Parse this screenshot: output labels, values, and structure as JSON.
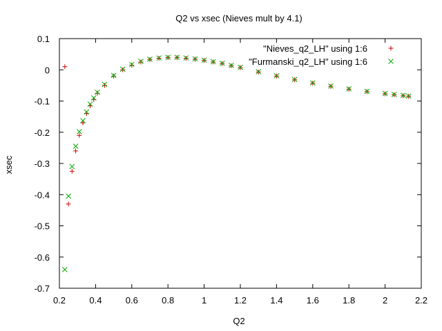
{
  "chart_data": {
    "type": "scatter",
    "title": "Q2 vs xsec (Nieves mult by 4.1)",
    "xlabel": "Q2",
    "ylabel": "xsec",
    "xlim": [
      0.2,
      2.2
    ],
    "ylim": [
      -0.7,
      0.1
    ],
    "x_ticks": [
      0.2,
      0.4,
      0.6,
      0.8,
      1.0,
      1.2,
      1.4,
      1.6,
      1.8,
      2.0,
      2.2
    ],
    "x_tick_labels": [
      "0.2",
      "0.4",
      "0.6",
      "0.8",
      "1",
      "1.2",
      "1.4",
      "1.6",
      "1.8",
      "2",
      "2.2"
    ],
    "y_ticks": [
      0.1,
      0.0,
      -0.1,
      -0.2,
      -0.3,
      -0.4,
      -0.5,
      -0.6,
      -0.7
    ],
    "y_tick_labels": [
      "0.1",
      "0",
      "-0.1",
      "-0.2",
      "-0.3",
      "-0.4",
      "-0.5",
      "-0.6",
      "-0.7"
    ],
    "grid": false,
    "legend_position": "top-right",
    "series": [
      {
        "name": "\"Nieves_q2_LH\" using 1:6",
        "marker": "plus",
        "color": "#cc0000",
        "x": [
          0.23,
          0.25,
          0.27,
          0.29,
          0.31,
          0.33,
          0.35,
          0.37,
          0.39,
          0.41,
          0.45,
          0.5,
          0.55,
          0.6,
          0.65,
          0.7,
          0.75,
          0.8,
          0.85,
          0.9,
          0.95,
          1.0,
          1.05,
          1.1,
          1.15,
          1.2,
          1.3,
          1.4,
          1.5,
          1.6,
          1.7,
          1.8,
          1.9,
          2.0,
          2.05,
          2.1,
          2.13
        ],
        "y": [
          0.01,
          -0.43,
          -0.325,
          -0.26,
          -0.21,
          -0.17,
          -0.14,
          -0.115,
          -0.095,
          -0.075,
          -0.05,
          -0.02,
          0.0,
          0.015,
          0.025,
          0.033,
          0.037,
          0.039,
          0.039,
          0.037,
          0.034,
          0.03,
          0.025,
          0.02,
          0.013,
          0.007,
          -0.007,
          -0.02,
          -0.032,
          -0.043,
          -0.053,
          -0.062,
          -0.07,
          -0.077,
          -0.08,
          -0.083,
          -0.085
        ]
      },
      {
        "name": "\"Furmanski_q2_LH\" using 1:6",
        "marker": "cross",
        "color": "#00aa00",
        "x": [
          0.23,
          0.25,
          0.27,
          0.29,
          0.31,
          0.33,
          0.35,
          0.37,
          0.39,
          0.41,
          0.45,
          0.5,
          0.55,
          0.6,
          0.65,
          0.7,
          0.75,
          0.8,
          0.85,
          0.9,
          0.95,
          1.0,
          1.05,
          1.1,
          1.15,
          1.2,
          1.3,
          1.4,
          1.5,
          1.6,
          1.7,
          1.8,
          1.9,
          2.0,
          2.05,
          2.1,
          2.13
        ],
        "y": [
          -0.64,
          -0.405,
          -0.31,
          -0.245,
          -0.198,
          -0.163,
          -0.135,
          -0.11,
          -0.09,
          -0.072,
          -0.047,
          -0.018,
          0.002,
          0.017,
          0.027,
          0.034,
          0.038,
          0.04,
          0.04,
          0.038,
          0.035,
          0.031,
          0.026,
          0.021,
          0.014,
          0.008,
          -0.006,
          -0.019,
          -0.031,
          -0.042,
          -0.052,
          -0.061,
          -0.069,
          -0.076,
          -0.079,
          -0.082,
          -0.084
        ]
      }
    ]
  }
}
